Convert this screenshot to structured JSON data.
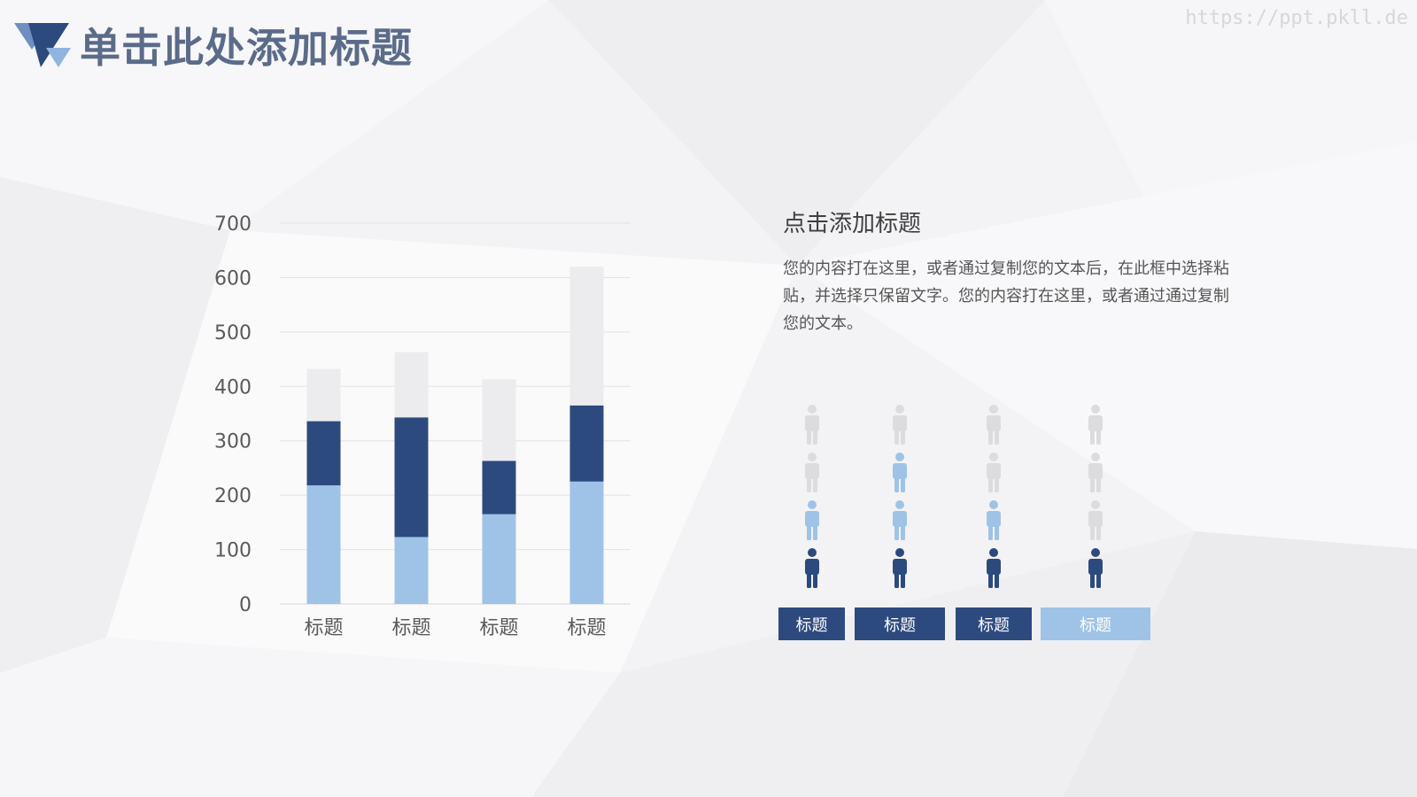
{
  "slide": {
    "title": "单击此处添加标题",
    "watermark": "https://ppt.pkll.de"
  },
  "info": {
    "heading": "点击添加标题",
    "body": "您的内容打在这里，或者通过复制您的文本后，在此框中选择粘贴，并选择只保留文字。您的内容打在这里，或者通过通过复制您的文本。"
  },
  "colors": {
    "dark": "#2d4a7f",
    "light": "#9fc3e6",
    "pale": "#ececef",
    "inactive_person": "#dcdcdf",
    "title": "#5b6b8a"
  },
  "chart_data": [
    {
      "type": "bar",
      "stacked": true,
      "categories": [
        "标题",
        "标题",
        "标题",
        "标题"
      ],
      "series": [
        {
          "values": [
            218,
            123,
            165,
            225
          ],
          "color": "#9fc3e6"
        },
        {
          "values": [
            118,
            220,
            98,
            140
          ],
          "color": "#2d4a7f"
        },
        {
          "values": [
            96,
            120,
            150,
            255
          ],
          "color": "#ececef"
        }
      ],
      "ylim": [
        0,
        700
      ],
      "yticks": [
        0,
        100,
        200,
        300,
        400,
        500,
        600,
        700
      ],
      "grid": true,
      "title": "",
      "xlabel": "",
      "ylabel": ""
    },
    {
      "type": "pictograph",
      "icon": "person-icon",
      "total_per_column": 4,
      "columns": [
        {
          "label": "标题",
          "dark": 1,
          "light": 1,
          "label_color": "#2d4a7f"
        },
        {
          "label": "标题",
          "dark": 1,
          "light": 2,
          "label_color": "#2d4a7f"
        },
        {
          "label": "标题",
          "dark": 1,
          "light": 1,
          "label_color": "#2d4a7f"
        },
        {
          "label": "标题",
          "dark": 1,
          "light": 0,
          "label_color": "#9fc3e6"
        }
      ]
    }
  ]
}
